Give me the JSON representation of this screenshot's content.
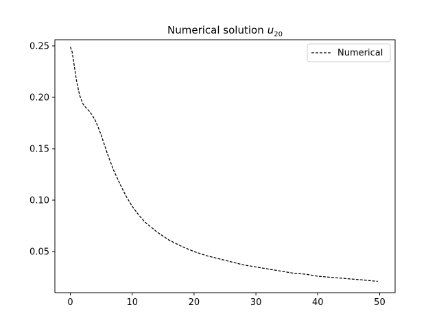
{
  "chart_data": {
    "type": "line",
    "title": "Numerical solution",
    "title_var": "u",
    "title_sub": "20",
    "xlabel": "",
    "ylabel": "",
    "xlim": [
      -2.5,
      52.5
    ],
    "ylim": [
      0.01,
      0.256
    ],
    "xticks": [
      0,
      10,
      20,
      30,
      40,
      50
    ],
    "yticks": [
      0.05,
      0.1,
      0.15,
      0.2,
      0.25
    ],
    "xtick_labels": [
      "0",
      "10",
      "20",
      "30",
      "40",
      "50"
    ],
    "ytick_labels": [
      "0.05",
      "0.10",
      "0.15",
      "0.20",
      "0.25"
    ],
    "grid": false,
    "legend": {
      "position": "top-right",
      "entries": [
        "Numerical"
      ]
    },
    "series": [
      {
        "name": "Numerical",
        "color": "#000000",
        "style": "dashed",
        "x": [
          0,
          0.3,
          0.6,
          1,
          1.5,
          2,
          2.5,
          3,
          3.5,
          4,
          4.5,
          5,
          5.5,
          6,
          7,
          8,
          9,
          10,
          11,
          12,
          13,
          14,
          15,
          16,
          18,
          20,
          22,
          24,
          26,
          28,
          30,
          32,
          34,
          36,
          38,
          40,
          42,
          44,
          46,
          48,
          49.7
        ],
        "y": [
          0.249,
          0.244,
          0.232,
          0.216,
          0.202,
          0.194,
          0.19,
          0.187,
          0.183,
          0.178,
          0.171,
          0.163,
          0.154,
          0.145,
          0.129,
          0.116,
          0.104,
          0.094,
          0.086,
          0.079,
          0.074,
          0.069,
          0.065,
          0.061,
          0.055,
          0.05,
          0.046,
          0.043,
          0.04,
          0.037,
          0.035,
          0.033,
          0.031,
          0.029,
          0.028,
          0.026,
          0.025,
          0.024,
          0.023,
          0.022,
          0.021
        ]
      }
    ]
  }
}
